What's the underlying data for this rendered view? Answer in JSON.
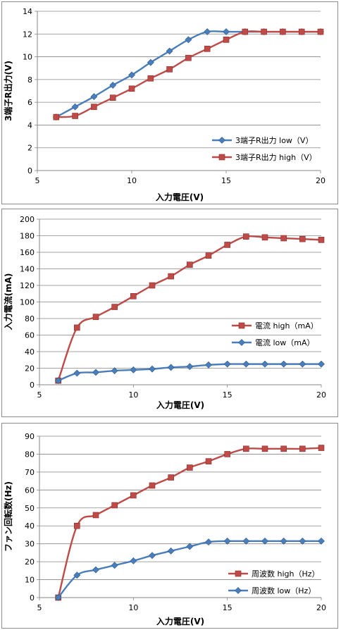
{
  "chart_data": [
    {
      "type": "line",
      "xlabel": "入力電圧(V)",
      "ylabel": "3端子R出力(V)",
      "xlim": [
        5,
        20
      ],
      "ylim": [
        0,
        14
      ],
      "xticks": [
        5,
        10,
        15,
        20
      ],
      "yticks": [
        0,
        2,
        4,
        6,
        8,
        10,
        12,
        14
      ],
      "legend_position": "bottom-right",
      "x": [
        6,
        7,
        8,
        9,
        10,
        11,
        12,
        13,
        14,
        15,
        16,
        17,
        18,
        19,
        20
      ],
      "series": [
        {
          "name": "3端子R出力 low（V）",
          "color": "#4a7ebb",
          "marker": "diamond",
          "values": [
            4.7,
            5.6,
            6.5,
            7.5,
            8.4,
            9.5,
            10.5,
            11.5,
            12.2,
            12.2,
            12.2,
            12.2,
            12.2,
            12.2,
            12.2
          ]
        },
        {
          "name": "3端子R出力 high（V）",
          "color": "#be4b48",
          "marker": "square",
          "values": [
            4.7,
            4.8,
            5.6,
            6.4,
            7.2,
            8.1,
            8.9,
            9.9,
            10.7,
            11.5,
            12.2,
            12.2,
            12.2,
            12.2,
            12.2
          ]
        }
      ]
    },
    {
      "type": "line",
      "xlabel": "入力電圧(V)",
      "ylabel": "入力電流(mA)",
      "xlim": [
        5,
        20
      ],
      "ylim": [
        0,
        200
      ],
      "xticks": [
        5,
        10,
        15,
        20
      ],
      "yticks": [
        0,
        20,
        40,
        60,
        80,
        100,
        120,
        140,
        160,
        180,
        200
      ],
      "legend_position": "right",
      "x": [
        6,
        7,
        8,
        9,
        10,
        11,
        12,
        13,
        14,
        15,
        16,
        17,
        18,
        19,
        20
      ],
      "series": [
        {
          "name": "電流 high（mA）",
          "color": "#be4b48",
          "marker": "square",
          "values": [
            5,
            69,
            82,
            94,
            107,
            120,
            131,
            145,
            156,
            169,
            179,
            178,
            177,
            176,
            175
          ]
        },
        {
          "name": "電流 low（mA）",
          "color": "#4a7ebb",
          "marker": "diamond",
          "values": [
            5,
            14,
            15,
            17,
            18,
            19,
            21,
            22,
            24,
            25,
            25,
            25,
            25,
            25,
            25
          ]
        }
      ]
    },
    {
      "type": "line",
      "xlabel": "入力電圧(V)",
      "ylabel": "ファン回転数(Hz)",
      "xlim": [
        5,
        20
      ],
      "ylim": [
        0,
        90
      ],
      "xticks": [
        5,
        10,
        15,
        20
      ],
      "yticks": [
        0,
        10,
        20,
        30,
        40,
        50,
        60,
        70,
        80,
        90
      ],
      "legend_position": "bottom-right",
      "x": [
        6,
        7,
        8,
        9,
        10,
        11,
        12,
        13,
        14,
        15,
        16,
        17,
        18,
        19,
        20
      ],
      "series": [
        {
          "name": "周波数 high（Hz）",
          "color": "#be4b48",
          "marker": "square",
          "values": [
            0,
            40,
            46,
            51.5,
            57,
            62.5,
            67,
            72.5,
            76,
            80,
            83,
            83,
            83,
            83,
            83.5
          ]
        },
        {
          "name": "周波数 low（Hz）",
          "color": "#4a7ebb",
          "marker": "diamond",
          "values": [
            0,
            12.5,
            15.5,
            18,
            20.5,
            23.5,
            26,
            28.5,
            31,
            31.5,
            31.5,
            31.5,
            31.5,
            31.5,
            31.5
          ]
        }
      ]
    }
  ]
}
